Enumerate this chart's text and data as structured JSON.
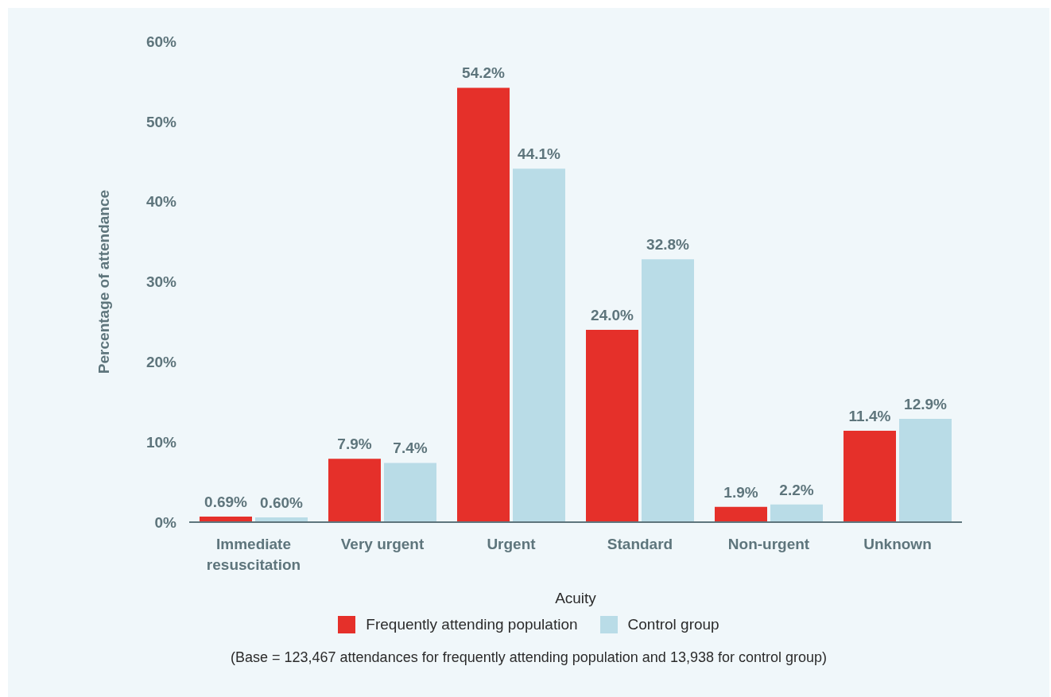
{
  "chart_data": {
    "type": "bar",
    "xlabel": "Acuity",
    "ylabel": "Percentage of attendance",
    "categories": [
      "Immediate resuscitation",
      "Very urgent",
      "Urgent",
      "Standard",
      "Non-urgent",
      "Unknown"
    ],
    "series": [
      {
        "name": "Frequently attending population",
        "color": "#e5302a",
        "values": [
          0.69,
          7.9,
          54.2,
          24.0,
          1.9,
          11.4
        ],
        "value_labels": [
          "0.69%",
          "7.9%",
          "54.2%",
          "24.0%",
          "1.9%",
          "11.4%"
        ]
      },
      {
        "name": "Control group",
        "color": "#b9dce7",
        "values": [
          0.6,
          7.4,
          44.1,
          32.8,
          2.2,
          12.9
        ],
        "value_labels": [
          "0.60%",
          "7.4%",
          "44.1%",
          "32.8%",
          "2.2%",
          "12.9%"
        ]
      }
    ],
    "ylim": [
      0,
      60
    ],
    "yticks": [
      {
        "value": 0,
        "label": "0%"
      },
      {
        "value": 10,
        "label": "10%"
      },
      {
        "value": 20,
        "label": "20%"
      },
      {
        "value": 30,
        "label": "30%"
      },
      {
        "value": 40,
        "label": "40%"
      },
      {
        "value": 50,
        "label": "50%"
      },
      {
        "value": 60,
        "label": "60%"
      }
    ],
    "legend": "bottom",
    "annotations": [
      "(Base = 123,467 attendances for frequently attending population and 13,938 for control group)"
    ]
  }
}
